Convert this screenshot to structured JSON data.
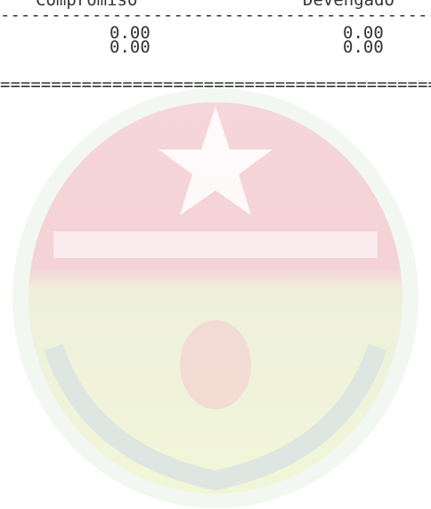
{
  "header": {
    "columns": [
      "Compromiso",
      "Devengado"
    ]
  },
  "separators": {
    "dashes": "-------------------------------------------",
    "equals": "==========================================="
  },
  "rows": [
    [
      "0.00",
      "0.00"
    ],
    [
      "0.00",
      "0.00"
    ]
  ]
}
